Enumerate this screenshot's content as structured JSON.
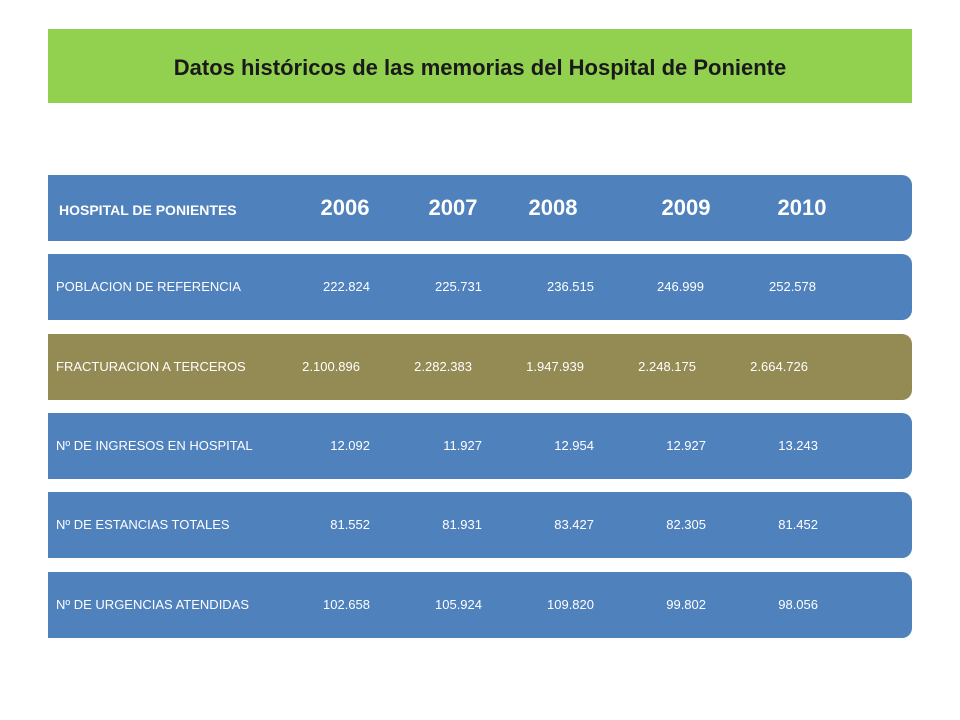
{
  "title": "Datos históricos de las memorias del Hospital de Poniente",
  "colors": {
    "title_band": "#92d050",
    "row_blue": "#4f81bd",
    "row_olive": "#948a54",
    "text_light": "#ffffff"
  },
  "table": {
    "header": {
      "label": "HOSPITAL DE PONIENTES",
      "years": [
        "2006",
        "2007",
        "2008",
        "2009",
        "2010"
      ]
    },
    "rows": [
      {
        "label": "POBLACION DE REFERENCIA",
        "values": [
          "222.824",
          "225.731",
          "236.515",
          "246.999",
          "252.578"
        ]
      },
      {
        "label": "FRACTURACION A TERCEROS",
        "values": [
          "2.100.896",
          "2.282.383",
          "1.947.939",
          "2.248.175",
          "2.664.726"
        ]
      },
      {
        "label": "Nº DE INGRESOS EN HOSPITAL",
        "values": [
          "12.092",
          "11.927",
          "12.954",
          "12.927",
          "13.243"
        ]
      },
      {
        "label": "Nº DE ESTANCIAS TOTALES",
        "values": [
          "81.552",
          "81.931",
          "83.427",
          "82.305",
          "81.452"
        ]
      },
      {
        "label": "Nº DE URGENCIAS ATENDIDAS",
        "values": [
          "102.658",
          "105.924",
          "109.820",
          "99.802",
          "98.056"
        ]
      }
    ]
  }
}
